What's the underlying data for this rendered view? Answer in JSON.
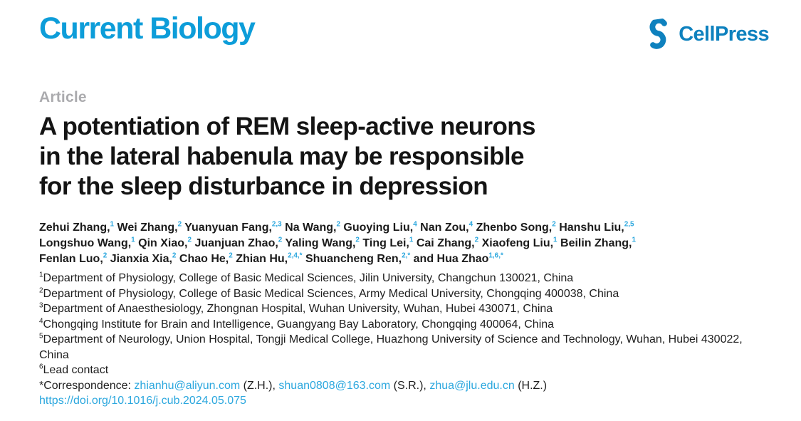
{
  "masthead": {
    "journal_name": "Current Biology",
    "publisher_name": "CellPress",
    "colors": {
      "journal_blue": "#0d9dd9",
      "publisher_blue": "#0e81be",
      "link_blue": "#2ba7de",
      "article_label_gray": "#ababae"
    }
  },
  "article": {
    "label": "Article",
    "title": "A potentiation of REM sleep-active neurons\nin the lateral habenula may be responsible\nfor the sleep disturbance in depression"
  },
  "authors": {
    "lines": [
      [
        {
          "name": "Zehui Zhang,",
          "sup": "1"
        },
        {
          "name": "Wei Zhang,",
          "sup": "2"
        },
        {
          "name": "Yuanyuan Fang,",
          "sup": "2,3"
        },
        {
          "name": "Na Wang,",
          "sup": "2"
        },
        {
          "name": "Guoying Liu,",
          "sup": "4"
        },
        {
          "name": "Nan Zou,",
          "sup": "4"
        },
        {
          "name": "Zhenbo Song,",
          "sup": "2"
        },
        {
          "name": "Hanshu Liu,",
          "sup": "2,5"
        }
      ],
      [
        {
          "name": "Longshuo Wang,",
          "sup": "1"
        },
        {
          "name": "Qin Xiao,",
          "sup": "2"
        },
        {
          "name": "Juanjuan Zhao,",
          "sup": "2"
        },
        {
          "name": "Yaling Wang,",
          "sup": "2"
        },
        {
          "name": "Ting Lei,",
          "sup": "1"
        },
        {
          "name": "Cai Zhang,",
          "sup": "2"
        },
        {
          "name": "Xiaofeng Liu,",
          "sup": "1"
        },
        {
          "name": "Beilin Zhang,",
          "sup": "1"
        }
      ],
      [
        {
          "name": "Fenlan Luo,",
          "sup": "2"
        },
        {
          "name": "Jianxia Xia,",
          "sup": "2"
        },
        {
          "name": "Chao He,",
          "sup": "2"
        },
        {
          "name": "Zhian Hu,",
          "sup": "2,4,*"
        },
        {
          "name": "Shuancheng Ren,",
          "sup": "2,*"
        },
        {
          "name": "and Hua Zhao",
          "sup": "1,6,*"
        }
      ]
    ]
  },
  "affiliations": [
    {
      "sup": "1",
      "text": "Department of Physiology, College of Basic Medical Sciences, Jilin University, Changchun 130021, China"
    },
    {
      "sup": "2",
      "text": "Department of Physiology, College of Basic Medical Sciences, Army Medical University, Chongqing 400038, China"
    },
    {
      "sup": "3",
      "text": "Department of Anaesthesiology, Zhongnan Hospital, Wuhan University, Wuhan, Hubei 430071, China"
    },
    {
      "sup": "4",
      "text": "Chongqing Institute for Brain and Intelligence, Guangyang Bay Laboratory, Chongqing 400064, China"
    },
    {
      "sup": "5",
      "text": "Department of Neurology, Union Hospital, Tongji Medical College, Huazhong University of Science and Technology, Wuhan, Hubei 430022, China"
    },
    {
      "sup": "6",
      "text": "Lead contact"
    }
  ],
  "correspondence": {
    "segments": [
      {
        "kind": "text",
        "text": "*Correspondence: "
      },
      {
        "kind": "link",
        "text": "zhianhu@aliyun.com"
      },
      {
        "kind": "text",
        "text": " (Z.H.), "
      },
      {
        "kind": "link",
        "text": "shuan0808@163.com"
      },
      {
        "kind": "text",
        "text": " (S.R.), "
      },
      {
        "kind": "link",
        "text": "zhua@jlu.edu.cn"
      },
      {
        "kind": "text",
        "text": " (H.Z.)"
      }
    ]
  },
  "doi": "https://doi.org/10.1016/j.cub.2024.05.075"
}
